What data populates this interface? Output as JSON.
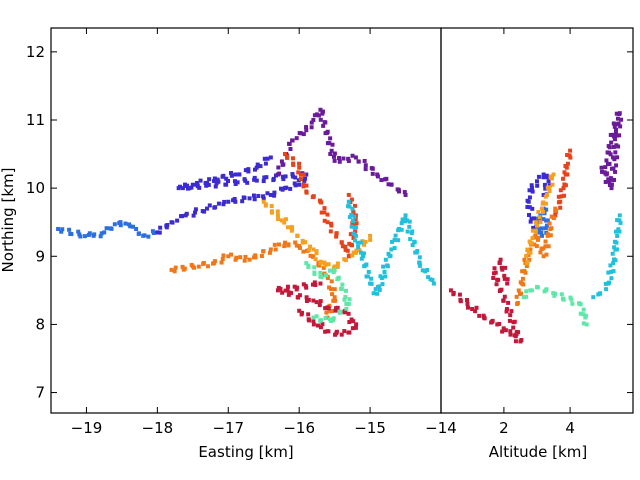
{
  "chart_data": {
    "type": "scatter",
    "ylabel": "Northing [km]",
    "ylim": [
      6.7,
      12.35
    ],
    "yticks": [
      7,
      8,
      9,
      10,
      11,
      12
    ],
    "ytick_labels": [
      "7",
      "8",
      "9",
      "10",
      "11",
      "12"
    ],
    "grid": false,
    "panels": [
      {
        "id": "easting",
        "xlabel": "Easting [km]",
        "xlim": [
          -19.5,
          -14.0
        ],
        "xticks": [
          -19,
          -18,
          -17,
          -16,
          -15,
          -14
        ],
        "xtick_labels": [
          "−19",
          "−18",
          "−17",
          "−16",
          "−15",
          "−14"
        ]
      },
      {
        "id": "altitude",
        "xlabel": "Altitude [km]",
        "xlim": [
          0.1,
          5.9
        ],
        "xticks": [
          2,
          4
        ],
        "xtick_labels": [
          "2",
          "4"
        ]
      }
    ],
    "series": [
      {
        "color": "#2b6fe0",
        "easting_northing": [
          [
            -19.4,
            9.4
          ],
          [
            -19.1,
            9.32
          ],
          [
            -18.9,
            9.3
          ],
          [
            -18.75,
            9.35
          ],
          [
            -18.6,
            9.47
          ],
          [
            -18.45,
            9.48
          ],
          [
            -18.3,
            9.4
          ],
          [
            -18.2,
            9.3
          ],
          [
            -18.0,
            9.35
          ]
        ],
        "altitude_northing": [
          [
            3.1,
            9.6
          ],
          [
            3.0,
            9.5
          ],
          [
            3.15,
            9.3
          ],
          [
            3.3,
            9.45
          ],
          [
            3.2,
            9.7
          ]
        ]
      },
      {
        "color": "#3b2bd0",
        "easting_northing": [
          [
            -18.0,
            9.35
          ],
          [
            -17.8,
            9.5
          ],
          [
            -17.6,
            9.6
          ],
          [
            -17.3,
            9.7
          ],
          [
            -17.0,
            9.8
          ],
          [
            -16.7,
            9.85
          ],
          [
            -16.4,
            9.9
          ],
          [
            -16.2,
            10.0
          ],
          [
            -16.0,
            10.05
          ],
          [
            -15.9,
            10.2
          ],
          [
            -17.7,
            10.0
          ],
          [
            -17.5,
            10.05
          ],
          [
            -16.9,
            10.2
          ],
          [
            -16.6,
            10.3
          ],
          [
            -16.4,
            10.45
          ]
        ],
        "altitude_northing": [
          [
            2.9,
            9.4
          ],
          [
            2.75,
            9.8
          ],
          [
            2.85,
            10.0
          ],
          [
            3.0,
            10.1
          ],
          [
            3.2,
            10.2
          ],
          [
            3.35,
            10.1
          ],
          [
            3.2,
            9.9
          ]
        ]
      },
      {
        "color": "#6a1b9a",
        "easting_northing": [
          [
            -16.3,
            10.2
          ],
          [
            -16.1,
            10.7
          ],
          [
            -15.9,
            10.85
          ],
          [
            -15.8,
            11.0
          ],
          [
            -15.7,
            11.15
          ],
          [
            -15.5,
            10.4
          ],
          [
            -15.2,
            10.45
          ],
          [
            -14.9,
            10.2
          ],
          [
            -14.7,
            10.05
          ],
          [
            -14.5,
            9.9
          ]
        ],
        "altitude_northing": [
          [
            5.1,
            10.2
          ],
          [
            5.2,
            10.6
          ],
          [
            5.35,
            10.9
          ],
          [
            5.5,
            11.1
          ],
          [
            5.25,
            10.0
          ],
          [
            4.95,
            10.3
          ]
        ]
      },
      {
        "color": "#e8421a",
        "easting_northing": [
          [
            -16.2,
            10.5
          ],
          [
            -16.0,
            10.3
          ],
          [
            -15.9,
            9.95
          ],
          [
            -15.7,
            9.8
          ],
          [
            -15.6,
            9.5
          ],
          [
            -15.4,
            9.2
          ],
          [
            -15.3,
            9.0
          ],
          [
            -15.2,
            9.6
          ],
          [
            -15.3,
            9.9
          ]
        ],
        "altitude_northing": [
          [
            4.0,
            10.55
          ],
          [
            3.9,
            10.3
          ],
          [
            3.8,
            10.0
          ],
          [
            3.7,
            9.8
          ],
          [
            3.55,
            9.6
          ]
        ]
      },
      {
        "color": "#f07818",
        "easting_northing": [
          [
            -17.8,
            8.8
          ],
          [
            -17.5,
            8.85
          ],
          [
            -17.2,
            8.9
          ],
          [
            -17.0,
            9.0
          ],
          [
            -16.7,
            8.95
          ],
          [
            -16.4,
            9.1
          ],
          [
            -16.2,
            9.2
          ],
          [
            -16.0,
            9.15
          ],
          [
            -15.8,
            9.0
          ],
          [
            -15.6,
            8.7
          ],
          [
            -15.5,
            8.4
          ],
          [
            -15.6,
            8.1
          ]
        ],
        "altitude_northing": [
          [
            2.4,
            8.3
          ],
          [
            2.55,
            8.6
          ],
          [
            2.65,
            8.9
          ],
          [
            2.8,
            9.1
          ],
          [
            2.95,
            9.3
          ],
          [
            3.2,
            9.0
          ],
          [
            3.4,
            9.4
          ],
          [
            3.55,
            9.7
          ]
        ]
      },
      {
        "color": "#f5a020",
        "easting_northing": [
          [
            -16.5,
            9.8
          ],
          [
            -16.3,
            9.6
          ],
          [
            -16.1,
            9.4
          ],
          [
            -15.95,
            9.2
          ],
          [
            -15.8,
            9.1
          ],
          [
            -15.7,
            8.9
          ],
          [
            -15.5,
            8.85
          ],
          [
            -15.2,
            9.05
          ],
          [
            -15.0,
            9.3
          ]
        ],
        "altitude_northing": [
          [
            2.7,
            8.9
          ],
          [
            2.8,
            9.2
          ],
          [
            3.0,
            9.45
          ],
          [
            3.15,
            9.7
          ],
          [
            3.3,
            9.9
          ],
          [
            3.5,
            10.2
          ]
        ]
      },
      {
        "color": "#c2183a",
        "easting_northing": [
          [
            -16.0,
            8.2
          ],
          [
            -15.8,
            8.05
          ],
          [
            -15.6,
            7.9
          ],
          [
            -15.4,
            7.85
          ],
          [
            -15.2,
            7.95
          ],
          [
            -15.35,
            8.2
          ],
          [
            -15.6,
            8.25
          ],
          [
            -15.8,
            8.35
          ],
          [
            -16.3,
            8.5
          ],
          [
            -15.7,
            8.6
          ]
        ],
        "altitude_northing": [
          [
            0.4,
            8.5
          ],
          [
            0.9,
            8.3
          ],
          [
            1.4,
            8.1
          ],
          [
            1.8,
            8.0
          ],
          [
            2.2,
            7.85
          ],
          [
            2.5,
            7.75
          ],
          [
            1.7,
            8.75
          ],
          [
            1.9,
            8.95
          ],
          [
            2.1,
            8.6
          ]
        ]
      },
      {
        "color": "#22c0dc",
        "easting_northing": [
          [
            -15.3,
            9.8
          ],
          [
            -15.2,
            9.3
          ],
          [
            -15.1,
            9.0
          ],
          [
            -15.0,
            8.6
          ],
          [
            -14.9,
            8.45
          ],
          [
            -14.7,
            9.1
          ],
          [
            -14.5,
            9.6
          ],
          [
            -14.3,
            8.9
          ],
          [
            -14.1,
            8.6
          ]
        ],
        "altitude_northing": [
          [
            5.5,
            9.6
          ],
          [
            5.4,
            9.2
          ],
          [
            5.3,
            8.9
          ],
          [
            5.15,
            8.6
          ],
          [
            4.9,
            8.45
          ],
          [
            4.7,
            8.4
          ]
        ]
      },
      {
        "color": "#5ee8a8",
        "easting_northing": [
          [
            -15.9,
            8.9
          ],
          [
            -15.7,
            8.7
          ],
          [
            -15.5,
            8.8
          ],
          [
            -15.3,
            8.3
          ],
          [
            -15.55,
            8.05
          ],
          [
            -15.8,
            8.1
          ]
        ],
        "altitude_northing": [
          [
            2.6,
            8.4
          ],
          [
            2.8,
            8.5
          ],
          [
            3.0,
            8.55
          ],
          [
            4.3,
            8.3
          ],
          [
            4.4,
            8.15
          ],
          [
            4.5,
            8.0
          ]
        ]
      }
    ]
  }
}
